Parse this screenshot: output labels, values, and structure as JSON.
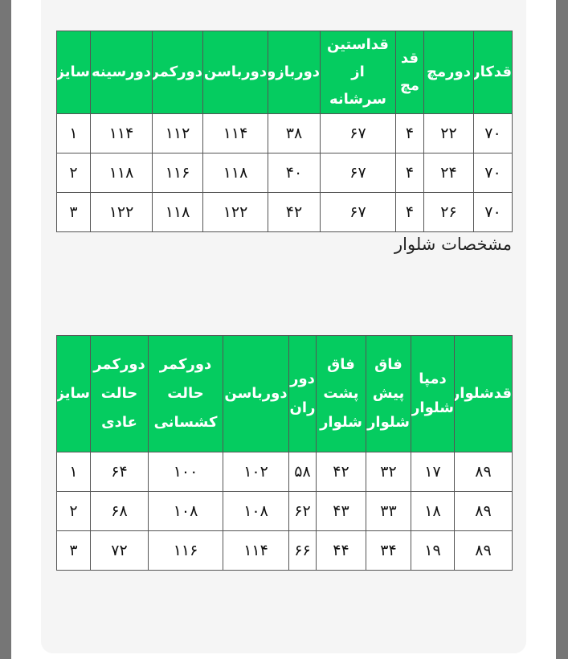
{
  "shirt_table": {
    "headers": [
      "قدکار",
      "دورمچ",
      "قد مچ",
      "قداستین از سرشانه",
      "دوربازو",
      "دورباسن",
      "دورکمر",
      "دورسینه",
      "سایز"
    ],
    "rows": [
      [
        "۷۰",
        "۲۲",
        "۴",
        "۶۷",
        "۳۸",
        "۱۱۴",
        "۱۱۲",
        "۱۱۴",
        "۱"
      ],
      [
        "۷۰",
        "۲۴",
        "۴",
        "۶۷",
        "۴۰",
        "۱۱۸",
        "۱۱۶",
        "۱۱۸",
        "۲"
      ],
      [
        "۷۰",
        "۲۶",
        "۴",
        "۶۷",
        "۴۲",
        "۱۲۲",
        "۱۱۸",
        "۱۲۲",
        "۳"
      ]
    ]
  },
  "pants_section_title": "مشخصات شلوار",
  "pants_table": {
    "headers": [
      "قدشلوار",
      "دمپا شلوار",
      "فاق پیش شلوار",
      "فاق پشت شلوار",
      "دور ران",
      "دورباسن",
      "دورکمر حالت کشسانی",
      "دورکمر حالت عادی",
      "سایز"
    ],
    "rows": [
      [
        "۸۹",
        "۱۷",
        "۳۲",
        "۴۲",
        "۵۸",
        "۱۰۲",
        "۱۰۰",
        "۶۴",
        "۱"
      ],
      [
        "۸۹",
        "۱۸",
        "۳۳",
        "۴۳",
        "۶۲",
        "۱۰۸",
        "۱۰۸",
        "۶۸",
        "۲"
      ],
      [
        "۸۹",
        "۱۹",
        "۳۴",
        "۴۴",
        "۶۶",
        "۱۱۴",
        "۱۱۶",
        "۷۲",
        "۳"
      ]
    ]
  },
  "colors": {
    "header_green": "#05cc60",
    "panel": "#f5f5f5"
  }
}
